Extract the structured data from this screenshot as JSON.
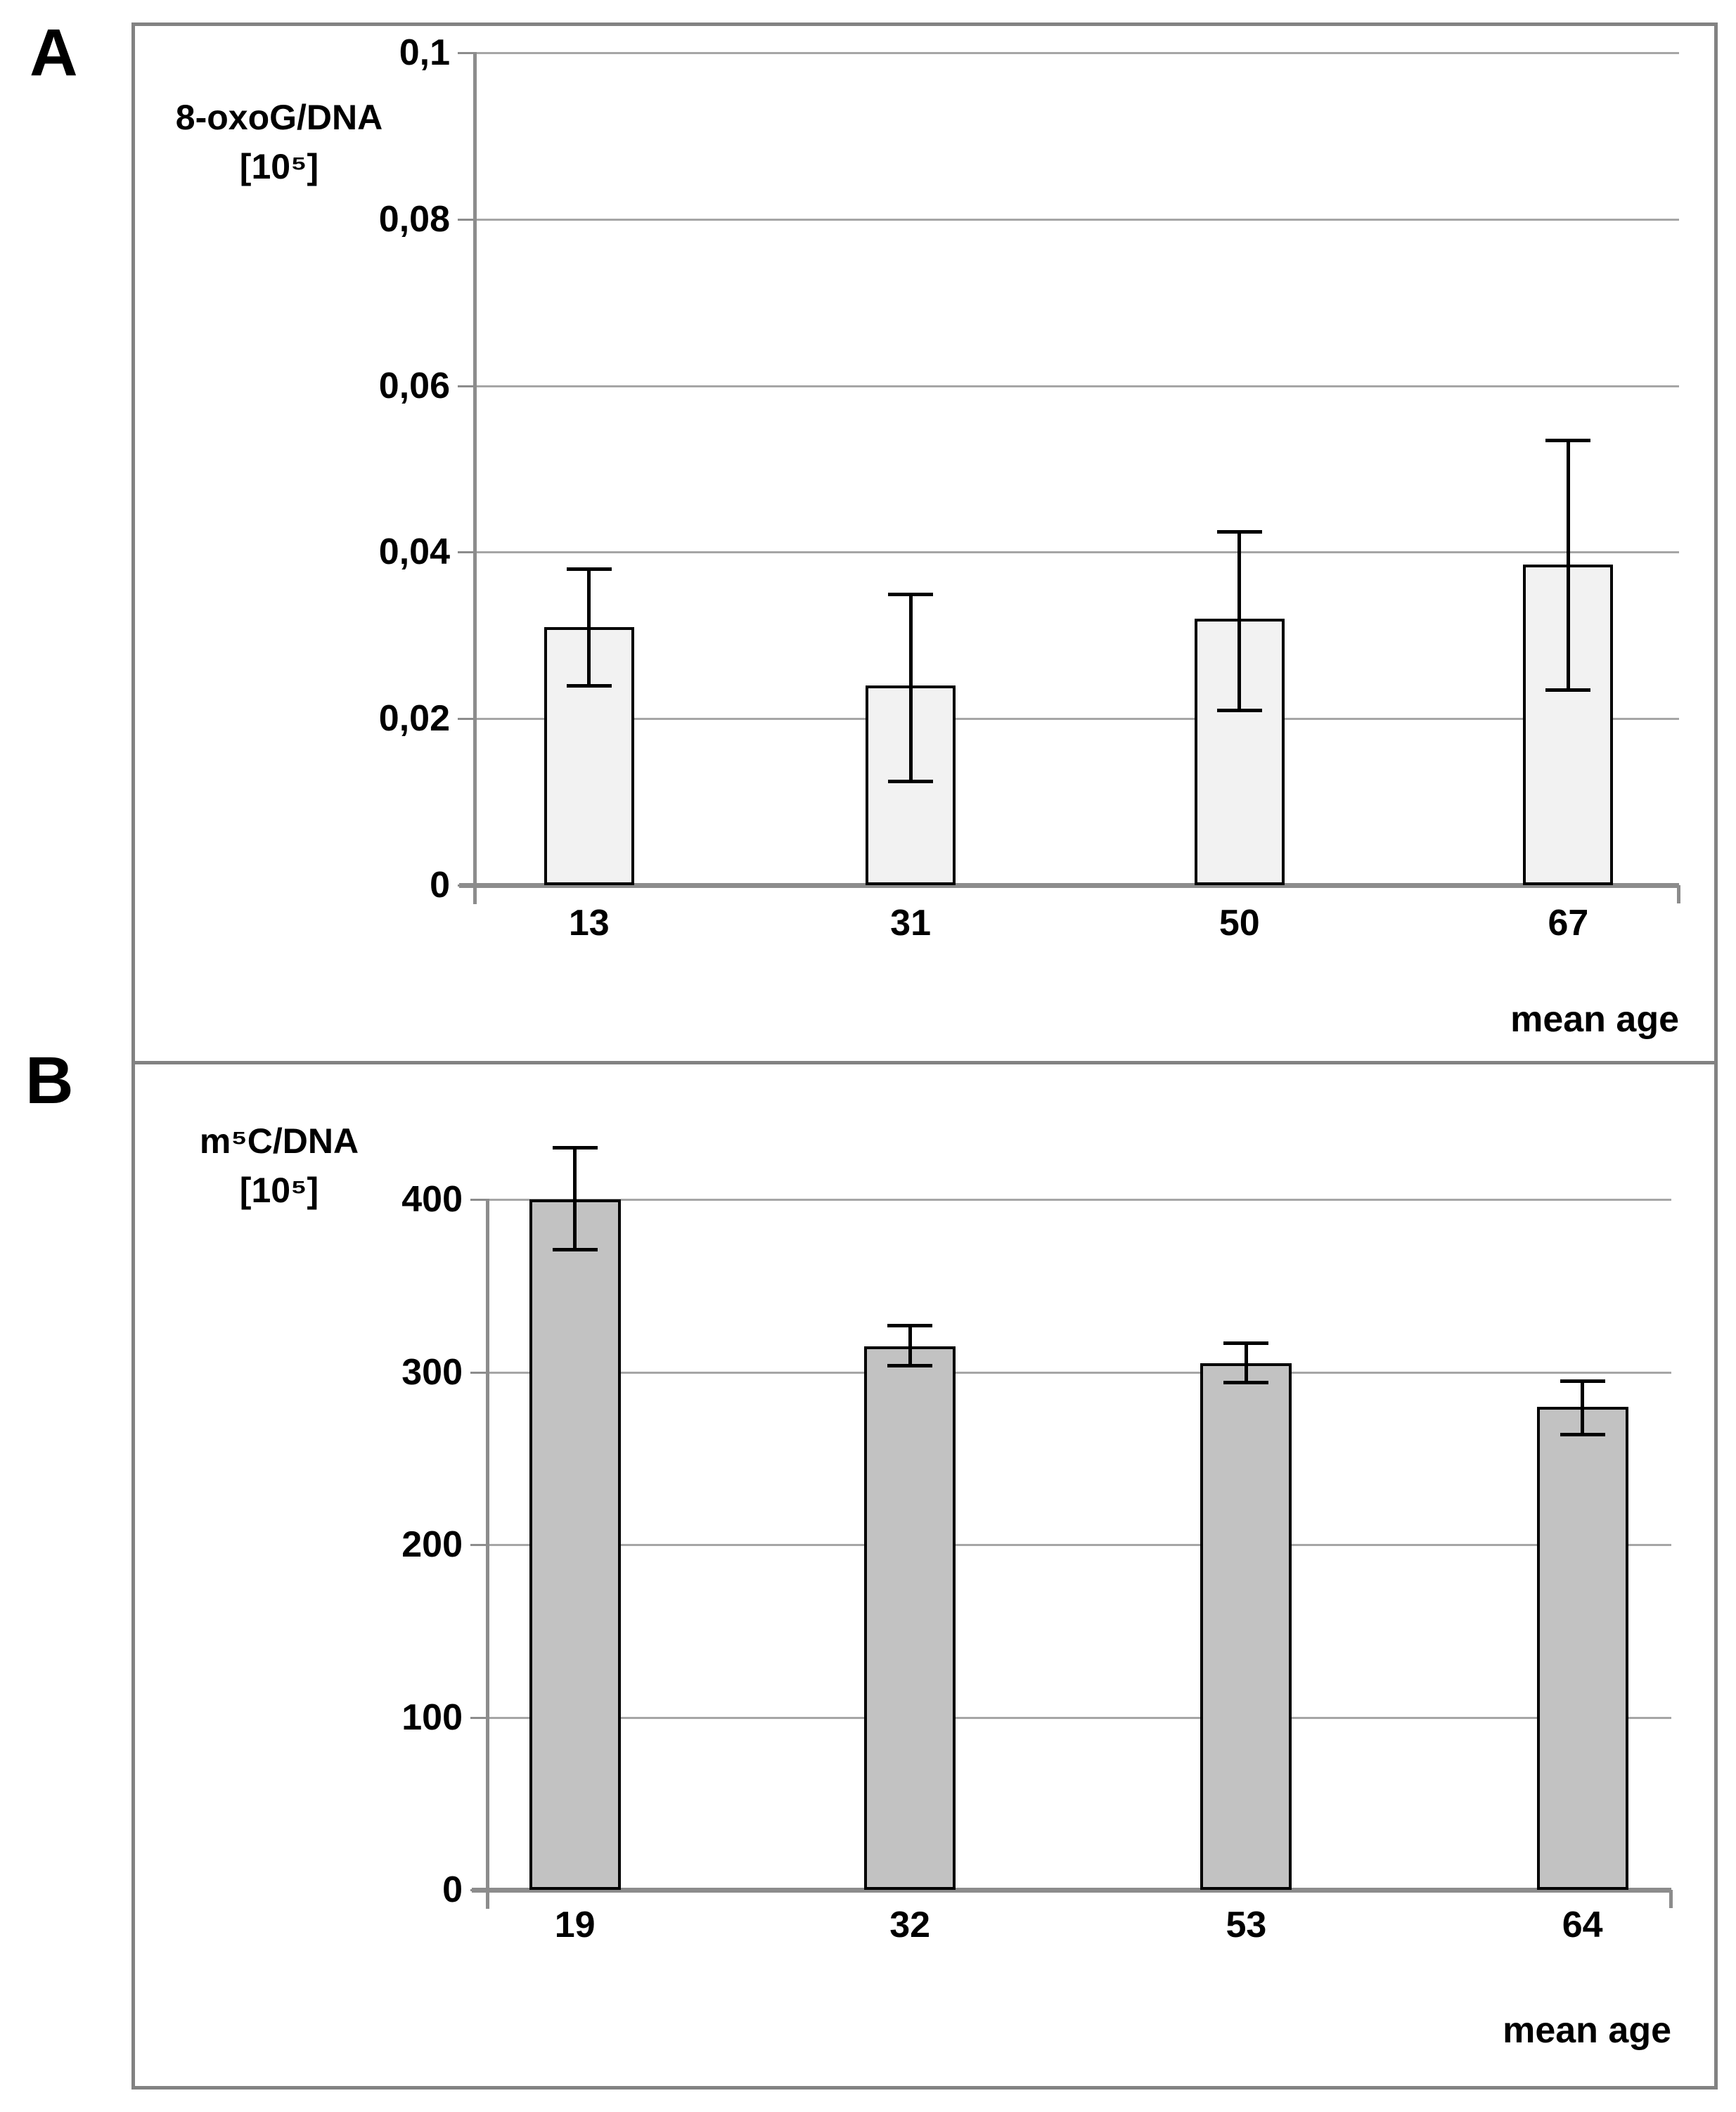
{
  "styles": {
    "background": "#ffffff",
    "panel_border": "#828282",
    "axis_color": "#8c8c8c",
    "grid_color": "#a6a6a6",
    "bar_border": "#000000",
    "error_color": "#000000",
    "text_color": "#000000",
    "bar_fill_panel_a": "#f2f2f2",
    "bar_fill_panel_b": "#c2c2c2"
  },
  "chart_data": [
    {
      "type": "bar",
      "panel_label": "A",
      "ylabel_line1": "8-oxoG/DNA",
      "ylabel_line2": "[10⁵]",
      "xlabel": "mean age",
      "categories": [
        "13",
        "31",
        "50",
        "67"
      ],
      "values": [
        0.031,
        0.024,
        0.032,
        0.0385
      ],
      "error_low": [
        0.024,
        0.0125,
        0.021,
        0.0235
      ],
      "error_high": [
        0.038,
        0.035,
        0.0425,
        0.0535
      ],
      "ylim": [
        0,
        0.1
      ],
      "yticks": [
        {
          "label": "0,1",
          "value": 0.1
        },
        {
          "label": "0,08",
          "value": 0.08
        },
        {
          "label": "0,06",
          "value": 0.06
        },
        {
          "label": "0,04",
          "value": 0.04
        },
        {
          "label": "0,02",
          "value": 0.02
        },
        {
          "label": "0",
          "value": 0
        }
      ],
      "grid": true,
      "legend": null,
      "bar_color": "#f2f2f2",
      "decimal_separator": ","
    },
    {
      "type": "bar",
      "panel_label": "B",
      "ylabel_line1": "m⁵C/DNA",
      "ylabel_line2": "[10⁵]",
      "xlabel": "mean age",
      "categories": [
        "19",
        "32",
        "53",
        "64"
      ],
      "values": [
        400,
        315,
        305,
        280
      ],
      "error_low": [
        371,
        304,
        294,
        264
      ],
      "error_high": [
        430,
        327,
        317,
        295
      ],
      "ylim": [
        0,
        400
      ],
      "yticks": [
        {
          "label": "400",
          "value": 400
        },
        {
          "label": "300",
          "value": 300
        },
        {
          "label": "200",
          "value": 200
        },
        {
          "label": "100",
          "value": 100
        },
        {
          "label": "0",
          "value": 0
        }
      ],
      "grid": true,
      "legend": null,
      "bar_color": "#c2c2c2",
      "decimal_separator": ","
    }
  ]
}
